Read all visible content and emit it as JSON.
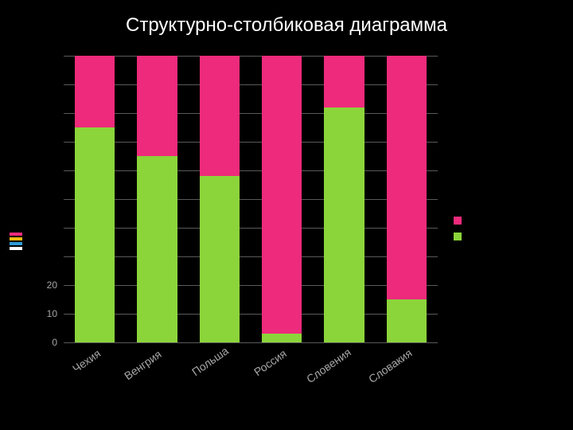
{
  "title": "Структурно-столбиковая диаграмма",
  "chart": {
    "type": "stacked-bar",
    "background_color": "#000000",
    "grid_color": "#595959",
    "axis_label_color": "#a6a6a6",
    "axis_fontsize": 12,
    "xlabel_fontsize": 14,
    "title_fontsize": 24,
    "title_color": "#ffffff",
    "ylim": [
      0,
      100
    ],
    "ytick_step": 10,
    "y_visible_ticks": [
      0,
      10,
      20
    ],
    "bar_width": 0.64,
    "categories": [
      "Чехия",
      "Венгрия",
      "Польша",
      "Россия",
      "Словения",
      "Словакия"
    ],
    "series": [
      {
        "name": "",
        "color": "#8bd43a",
        "values": [
          75,
          65,
          58,
          3,
          82,
          15
        ]
      },
      {
        "name": "",
        "color": "#ed2a7b",
        "values": [
          25,
          35,
          42,
          97,
          18,
          85
        ]
      }
    ],
    "legend": {
      "position": "right",
      "items": [
        {
          "color": "#ed2a7b",
          "label": ""
        },
        {
          "color": "#8bd43a",
          "label": ""
        }
      ]
    },
    "left_dashes": [
      "#ed2a7b",
      "#f5b90f",
      "#2e9bd6",
      "#ffffff"
    ]
  }
}
